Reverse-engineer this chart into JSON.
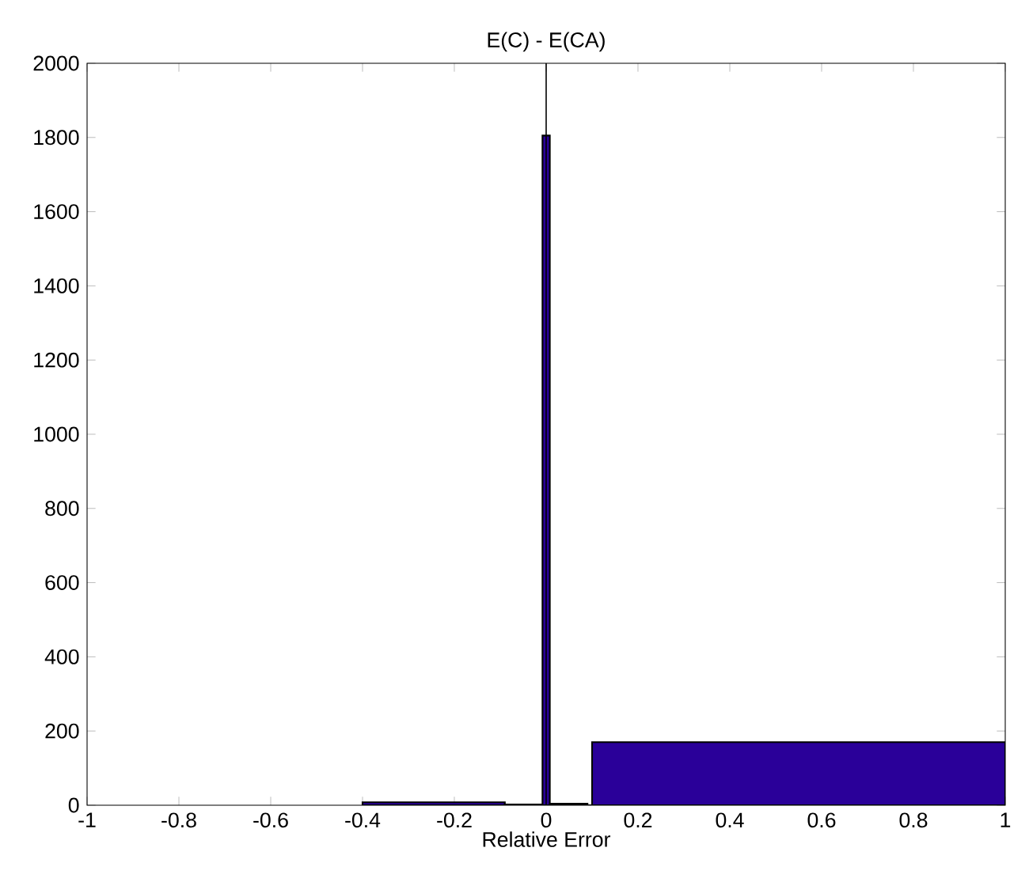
{
  "chart_data": {
    "type": "histogram",
    "title": "E(C) - E(CA)",
    "xlabel": "Relative Error",
    "bins": [
      -0.4,
      -0.09,
      -0.05,
      -0.01,
      -0.008,
      0.008,
      0.09,
      0.1,
      1
    ],
    "values": [
      8,
      2,
      2,
      0,
      1805,
      4,
      0,
      170
    ],
    "color": "#2a0099",
    "xlim": [
      -1,
      1
    ],
    "xticks": [
      -1,
      -0.8,
      -0.6,
      -0.4,
      -0.2,
      0,
      0.2,
      0.4,
      0.6,
      0.8,
      1
    ],
    "ylim": [
      0,
      2000
    ],
    "yticks": [
      0,
      200,
      400,
      600,
      800,
      1000,
      1200,
      1400,
      1600,
      1800,
      2000
    ],
    "ref_lines": [
      {
        "axis": "x",
        "value": 0,
        "color": "#000000"
      }
    ],
    "grid": false
  }
}
